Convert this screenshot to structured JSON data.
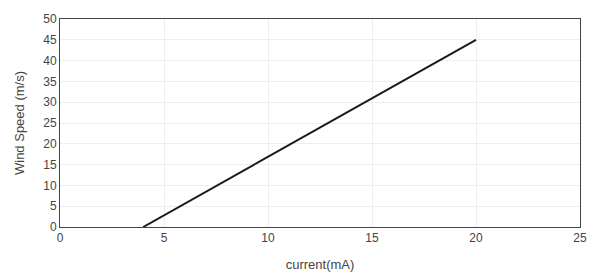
{
  "chart_data": {
    "type": "line",
    "x": [
      4,
      20
    ],
    "values": [
      0,
      45
    ],
    "xlabel": "current(mA)",
    "ylabel": "Wind Speed (m/s)",
    "xlim": [
      0,
      25
    ],
    "ylim": [
      0,
      50
    ],
    "xticks": [
      0,
      5,
      10,
      15,
      20,
      25
    ],
    "yticks": [
      0,
      5,
      10,
      15,
      20,
      25,
      30,
      35,
      40,
      45,
      50
    ],
    "grid": true,
    "color": "#1a1a1a"
  }
}
